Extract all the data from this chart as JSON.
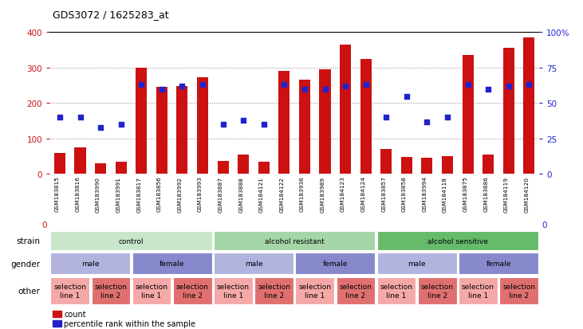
{
  "title": "GDS3072 / 1625283_at",
  "samples": [
    "GSM183815",
    "GSM183816",
    "GSM183990",
    "GSM183991",
    "GSM183817",
    "GSM183856",
    "GSM183992",
    "GSM183993",
    "GSM183887",
    "GSM183888",
    "GSM184121",
    "GSM184122",
    "GSM183936",
    "GSM183989",
    "GSM184123",
    "GSM184124",
    "GSM183857",
    "GSM183858",
    "GSM183994",
    "GSM184118",
    "GSM183875",
    "GSM183886",
    "GSM184119",
    "GSM184120"
  ],
  "counts": [
    60,
    75,
    30,
    35,
    300,
    245,
    248,
    272,
    38,
    55,
    35,
    290,
    265,
    295,
    365,
    325,
    70,
    48,
    45,
    50,
    335,
    55,
    355,
    385
  ],
  "percentiles": [
    40,
    40,
    33,
    35,
    63,
    60,
    62,
    63,
    35,
    38,
    35,
    63,
    60,
    60,
    62,
    63,
    40,
    55,
    37,
    40,
    63,
    60,
    62,
    63
  ],
  "ylim_left": [
    0,
    400
  ],
  "ylim_right": [
    0,
    100
  ],
  "yticks_left": [
    0,
    100,
    200,
    300,
    400
  ],
  "yticks_right": [
    0,
    25,
    50,
    75,
    100
  ],
  "ytick_right_labels": [
    "0",
    "25",
    "50",
    "75",
    "100%"
  ],
  "strain_groups": [
    {
      "label": "control",
      "start": 0,
      "end": 8,
      "color": "#c8e6c9"
    },
    {
      "label": "alcohol resistant",
      "start": 8,
      "end": 16,
      "color": "#a5d6a7"
    },
    {
      "label": "alcohol sensitive",
      "start": 16,
      "end": 24,
      "color": "#66bb6a"
    }
  ],
  "gender_groups": [
    {
      "label": "male",
      "start": 0,
      "end": 4,
      "color": "#b3b3e0"
    },
    {
      "label": "female",
      "start": 4,
      "end": 8,
      "color": "#8888cc"
    },
    {
      "label": "male",
      "start": 8,
      "end": 12,
      "color": "#b3b3e0"
    },
    {
      "label": "female",
      "start": 12,
      "end": 16,
      "color": "#8888cc"
    },
    {
      "label": "male",
      "start": 16,
      "end": 20,
      "color": "#b3b3e0"
    },
    {
      "label": "female",
      "start": 20,
      "end": 24,
      "color": "#8888cc"
    }
  ],
  "other_groups": [
    {
      "label": "selection\nline 1",
      "start": 0,
      "end": 2,
      "color": "#f4a9a8"
    },
    {
      "label": "selection\nline 2",
      "start": 2,
      "end": 4,
      "color": "#e07070"
    },
    {
      "label": "selection\nline 1",
      "start": 4,
      "end": 6,
      "color": "#f4a9a8"
    },
    {
      "label": "selection\nline 2",
      "start": 6,
      "end": 8,
      "color": "#e07070"
    },
    {
      "label": "selection\nline 1",
      "start": 8,
      "end": 10,
      "color": "#f4a9a8"
    },
    {
      "label": "selection\nline 2",
      "start": 10,
      "end": 12,
      "color": "#e07070"
    },
    {
      "label": "selection\nline 1",
      "start": 12,
      "end": 14,
      "color": "#f4a9a8"
    },
    {
      "label": "selection\nline 2",
      "start": 14,
      "end": 16,
      "color": "#e07070"
    },
    {
      "label": "selection\nline 1",
      "start": 16,
      "end": 18,
      "color": "#f4a9a8"
    },
    {
      "label": "selection\nline 2",
      "start": 18,
      "end": 20,
      "color": "#e07070"
    },
    {
      "label": "selection\nline 1",
      "start": 20,
      "end": 22,
      "color": "#f4a9a8"
    },
    {
      "label": "selection\nline 2",
      "start": 22,
      "end": 24,
      "color": "#e07070"
    }
  ],
  "bar_color": "#cc1111",
  "dot_color": "#2222cc",
  "grid_color": "#888888",
  "left_tick_color": "#cc1111",
  "right_tick_color": "#2222cc",
  "legend_items": [
    "count",
    "percentile rank within the sample"
  ],
  "row_labels": [
    "strain",
    "gender",
    "other"
  ],
  "xtick_bg": "#d8d8d8",
  "row_bg": "#e8e8e8"
}
